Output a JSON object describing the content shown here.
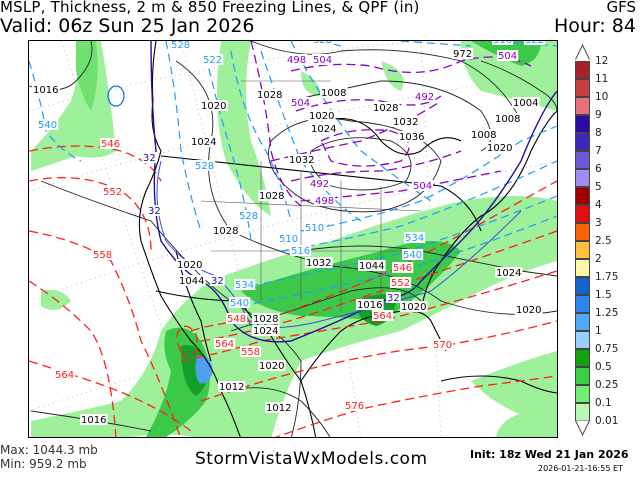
{
  "header": {
    "title": "MSLP, Thickness, 2 m & 850 Freezing Lines, & QPF (in)",
    "model": "GFS",
    "valid": "Valid: 06z Sun 25 Jan 2026",
    "hour": "Hour: 84"
  },
  "footer": {
    "max": "Max: 1044.3 mb",
    "min": "Min: 959.2 mb",
    "site": "StormVistaWxModels.com",
    "init": "Init: 18z Wed 21 Jan 2026",
    "timestamp": "2026-01-21-16:55 ET"
  },
  "legend": {
    "labels": [
      "12",
      "11",
      "10",
      "9",
      "8",
      "7",
      "6",
      "5",
      "4",
      "3",
      "2.5",
      "2",
      "1.75",
      "1.5",
      "1.25",
      "1",
      "0.75",
      "0.5",
      "0.25",
      "0.1",
      "0.01"
    ],
    "colors": [
      "#a8202a",
      "#c83c44",
      "#e8707a",
      "#2a0aa8",
      "#3c28b8",
      "#6c5ad8",
      "#a08cf8",
      "#a00000",
      "#e01010",
      "#ff6000",
      "#ffc040",
      "#fff8a8",
      "#1464d0",
      "#2888f0",
      "#50a8f8",
      "#98d0ff",
      "#10a010",
      "#38d040",
      "#70f070",
      "#b8f8b0"
    ]
  },
  "map": {
    "colors": {
      "isobar": "#000000",
      "thickness_warm": "#ff2020",
      "thickness_cold": "#1e9bff",
      "thickness_very_cold": "#8a00c8",
      "freezing_line": "#2010a0",
      "qpf_light": "#9ef09a",
      "qpf_mid": "#3cc848",
      "qpf_heavy": "#14a028",
      "qpf_snow": "#50a0f0"
    },
    "isobar_labels": [
      "1016",
      "1020",
      "1024",
      "1028",
      "1028",
      "1028",
      "1008",
      "1020",
      "1024",
      "1028",
      "1032",
      "1036",
      "1032",
      "972",
      "1008",
      "1004",
      "1008",
      "1020",
      "1032",
      "1020",
      "1044",
      "1044",
      "1016",
      "1020",
      "1024",
      "1020",
      "1028",
      "1024",
      "1020",
      "1012",
      "1012",
      "1016"
    ],
    "thickness_labels": [
      "546",
      "552",
      "558",
      "546",
      "552",
      "564",
      "548",
      "564",
      "558",
      "564",
      "570",
      "576"
    ],
    "cold_thickness_labels": [
      "540",
      "528",
      "522",
      "528",
      "528",
      "528",
      "510",
      "516",
      "510",
      "516",
      "522",
      "534",
      "540",
      "540",
      "534"
    ],
    "very_cold_thickness_labels": [
      "498",
      "504",
      "504",
      "492",
      "492",
      "498",
      "504",
      "504"
    ],
    "freezing_labels": [
      "32",
      "32",
      "32",
      "32"
    ]
  }
}
